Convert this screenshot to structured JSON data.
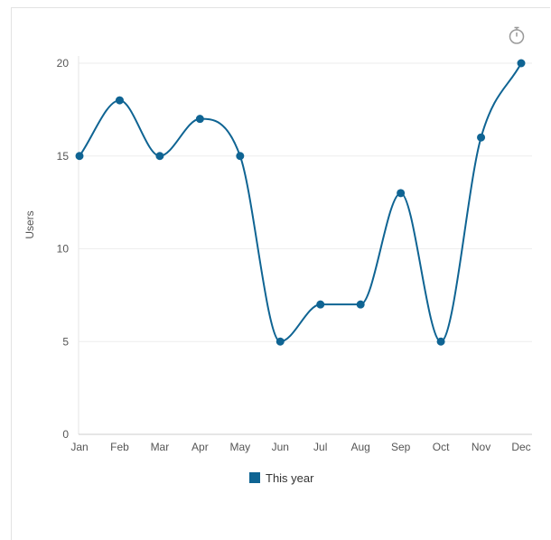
{
  "chart_data": {
    "type": "line",
    "categories": [
      "Jan",
      "Feb",
      "Mar",
      "Apr",
      "May",
      "Jun",
      "Jul",
      "Aug",
      "Sep",
      "Oct",
      "Nov",
      "Dec"
    ],
    "series": [
      {
        "name": "This year",
        "values": [
          15,
          18,
          15,
          17,
          15,
          5,
          7,
          7,
          13,
          5,
          16,
          20
        ],
        "color": "#0f6493"
      }
    ],
    "title": "",
    "xlabel": "",
    "ylabel": "Users",
    "ylim": [
      0,
      20
    ],
    "yticks": [
      "0",
      "5",
      "10",
      "15",
      "20"
    ],
    "grid": true,
    "legend_position": "bottom",
    "smooth": true
  },
  "toolbar": {
    "timer_icon": "timer-icon"
  }
}
